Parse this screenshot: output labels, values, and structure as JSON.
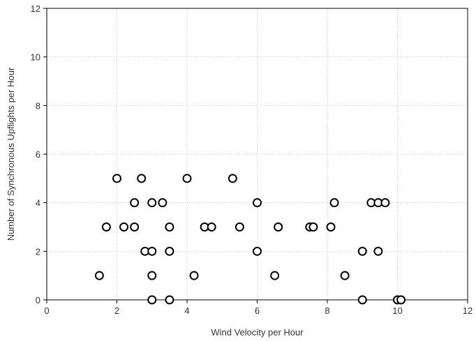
{
  "chart_data": {
    "type": "scatter",
    "title": "",
    "xlabel": "Wind Velocity per Hour",
    "ylabel": "Number of Synchronous Upflights per Hour",
    "xlim": [
      0,
      12
    ],
    "ylim": [
      0,
      12
    ],
    "xticks": [
      0,
      2,
      4,
      6,
      8,
      10,
      12
    ],
    "yticks": [
      0,
      2,
      4,
      6,
      8,
      10,
      12
    ],
    "grid": true,
    "marker": "open-circle",
    "colors": {
      "marker_edge": "#000000",
      "marker_fill": "#ffffff",
      "grid": "#c8c8c8"
    },
    "points": [
      [
        1.5,
        1
      ],
      [
        1.7,
        3
      ],
      [
        2.0,
        5
      ],
      [
        2.2,
        3
      ],
      [
        2.5,
        4
      ],
      [
        2.5,
        3
      ],
      [
        2.7,
        5
      ],
      [
        2.8,
        2
      ],
      [
        3.0,
        2
      ],
      [
        3.0,
        4
      ],
      [
        3.0,
        1
      ],
      [
        3.0,
        0
      ],
      [
        3.3,
        4
      ],
      [
        3.5,
        3
      ],
      [
        3.5,
        2
      ],
      [
        3.5,
        0
      ],
      [
        4.0,
        5
      ],
      [
        4.2,
        1
      ],
      [
        4.5,
        3
      ],
      [
        4.7,
        3
      ],
      [
        5.3,
        5
      ],
      [
        5.5,
        3
      ],
      [
        6.0,
        4
      ],
      [
        6.0,
        2
      ],
      [
        6.5,
        1
      ],
      [
        6.6,
        3
      ],
      [
        7.5,
        3
      ],
      [
        7.6,
        3
      ],
      [
        8.1,
        3
      ],
      [
        8.2,
        4
      ],
      [
        8.5,
        1
      ],
      [
        9.0,
        2
      ],
      [
        9.0,
        0
      ],
      [
        9.25,
        4
      ],
      [
        9.45,
        4
      ],
      [
        9.45,
        2
      ],
      [
        9.65,
        4
      ],
      [
        10.0,
        0
      ],
      [
        10.1,
        0
      ]
    ]
  }
}
